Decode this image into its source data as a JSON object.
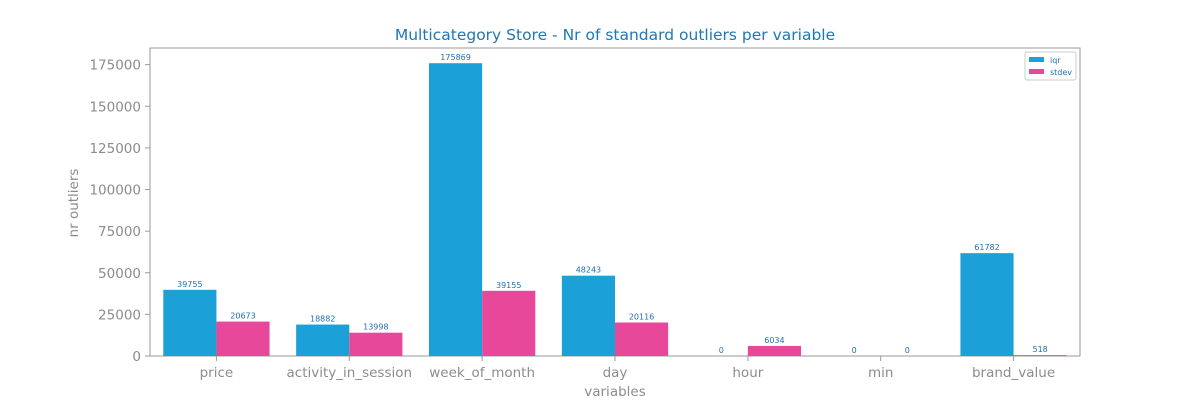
{
  "chart_data": {
    "type": "bar",
    "title": "Multicategory Store - Nr of standard outliers per variable",
    "xlabel": "variables",
    "ylabel": "nr outliers",
    "categories": [
      "price",
      "activity_in_session",
      "week_of_month",
      "day",
      "hour",
      "min",
      "brand_value"
    ],
    "series": [
      {
        "name": "iqr",
        "color": "#1ba1d8",
        "values": [
          39755,
          18882,
          175869,
          48243,
          0,
          0,
          61782
        ]
      },
      {
        "name": "stdev",
        "color": "#e8489a",
        "values": [
          20673,
          13998,
          39155,
          20116,
          6034,
          0,
          518
        ]
      }
    ],
    "ylim": [
      0,
      185000
    ],
    "yticks": [
      0,
      25000,
      50000,
      75000,
      100000,
      125000,
      150000,
      175000
    ],
    "grid": false,
    "legend_position": "top-right"
  },
  "colors": {
    "title": "#1f77b4",
    "tick_text": "#8c8c8c",
    "axis_line": "#999999",
    "data_label": "#1f6fb0"
  }
}
